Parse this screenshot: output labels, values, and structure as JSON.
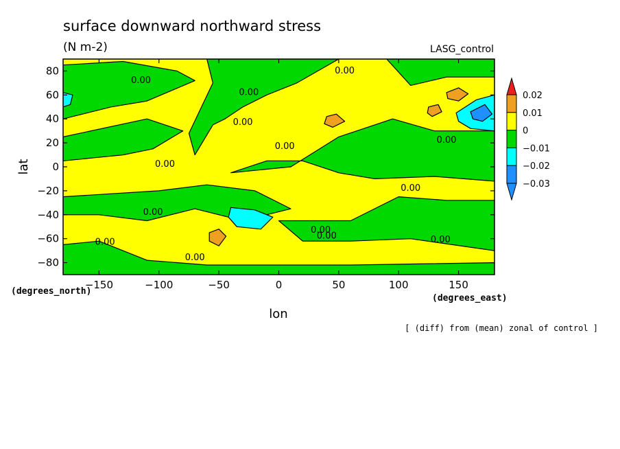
{
  "chart_data": {
    "type": "heatmap",
    "title": "surface downward northward stress",
    "units": "(N m-2)",
    "model_label": "LASG_control",
    "xlabel": "lon",
    "ylabel": "lat",
    "x_units_label": "(degrees_east)",
    "y_units_label": "(degrees_north)",
    "footnote": "[ (diff) from (mean) zonal of control ]",
    "xlim": [
      -180,
      180
    ],
    "ylim": [
      -90,
      90
    ],
    "x_ticks": [
      -150,
      -100,
      -50,
      0,
      50,
      100,
      150
    ],
    "y_ticks": [
      -80,
      -60,
      -40,
      -20,
      0,
      20,
      40,
      60,
      80
    ],
    "contour_label": "0.00",
    "colorbar": {
      "levels": [
        0.02,
        0.01,
        0,
        -0.01,
        -0.02,
        -0.03
      ],
      "level_labels": [
        "0.02",
        "0.01",
        "0",
        "-0.01",
        "-0.02",
        "-0.03"
      ],
      "colors": [
        "#e8201e",
        "#f0a020",
        "#ffff00",
        "#00d800",
        "#00ffff",
        "#1e90ff"
      ]
    },
    "base_color": "#ffff00",
    "regions": [
      {
        "level": -0.01,
        "color": "#00d800",
        "poly": [
          [
            -180,
            85
          ],
          [
            -130,
            88
          ],
          [
            -85,
            80
          ],
          [
            -70,
            72
          ],
          [
            -110,
            55
          ],
          [
            -140,
            50
          ],
          [
            -180,
            40
          ]
        ]
      },
      {
        "level": -0.01,
        "color": "#00d800",
        "poly": [
          [
            -60,
            90
          ],
          [
            50,
            90
          ],
          [
            15,
            70
          ],
          [
            -10,
            60
          ],
          [
            -30,
            50
          ],
          [
            -45,
            40
          ],
          [
            -55,
            35
          ],
          [
            -70,
            10
          ],
          [
            -75,
            28
          ],
          [
            -55,
            70
          ]
        ]
      },
      {
        "level": -0.01,
        "color": "#00d800",
        "poly": [
          [
            90,
            90
          ],
          [
            180,
            90
          ],
          [
            180,
            75
          ],
          [
            140,
            75
          ],
          [
            110,
            68
          ]
        ]
      },
      {
        "level": -0.01,
        "color": "#00d800",
        "poly": [
          [
            -180,
            25
          ],
          [
            -110,
            40
          ],
          [
            -80,
            30
          ],
          [
            -105,
            15
          ],
          [
            -130,
            10
          ],
          [
            -180,
            5
          ]
        ]
      },
      {
        "level": -0.01,
        "color": "#00d800",
        "poly": [
          [
            -40,
            -5
          ],
          [
            10,
            0
          ],
          [
            50,
            25
          ],
          [
            95,
            40
          ],
          [
            130,
            30
          ],
          [
            180,
            30
          ],
          [
            180,
            -12
          ],
          [
            130,
            -8
          ],
          [
            80,
            -10
          ],
          [
            50,
            -5
          ],
          [
            20,
            5
          ],
          [
            -10,
            5
          ]
        ]
      },
      {
        "level": -0.01,
        "color": "#00d800",
        "poly": [
          [
            -180,
            -25
          ],
          [
            -100,
            -20
          ],
          [
            -60,
            -15
          ],
          [
            -20,
            -20
          ],
          [
            10,
            -35
          ],
          [
            -30,
            -45
          ],
          [
            -70,
            -35
          ],
          [
            -110,
            -45
          ],
          [
            -150,
            -40
          ],
          [
            -180,
            -40
          ]
        ]
      },
      {
        "level": -0.01,
        "color": "#00d800",
        "poly": [
          [
            0,
            -45
          ],
          [
            60,
            -45
          ],
          [
            100,
            -25
          ],
          [
            140,
            -28
          ],
          [
            180,
            -28
          ],
          [
            180,
            -70
          ],
          [
            110,
            -60
          ],
          [
            60,
            -62
          ],
          [
            20,
            -62
          ]
        ]
      },
      {
        "level": -0.01,
        "color": "#00d800",
        "poly": [
          [
            -180,
            -65
          ],
          [
            -150,
            -62
          ],
          [
            -110,
            -78
          ],
          [
            -60,
            -82
          ],
          [
            0,
            -82
          ],
          [
            60,
            -82
          ],
          [
            180,
            -80
          ],
          [
            180,
            -90
          ],
          [
            -180,
            -90
          ]
        ]
      },
      {
        "level": -0.02,
        "color": "#00ffff",
        "poly": [
          [
            -40,
            -34
          ],
          [
            -20,
            -36
          ],
          [
            -5,
            -42
          ],
          [
            -15,
            -52
          ],
          [
            -35,
            -50
          ],
          [
            -42,
            -42
          ]
        ]
      },
      {
        "level": -0.02,
        "color": "#00ffff",
        "poly": [
          [
            -180,
            62
          ],
          [
            -172,
            60
          ],
          [
            -174,
            52
          ],
          [
            -180,
            50
          ]
        ]
      },
      {
        "level": -0.02,
        "color": "#00ffff",
        "poly": [
          [
            148,
            45
          ],
          [
            165,
            56
          ],
          [
            180,
            60
          ],
          [
            180,
            30
          ],
          [
            160,
            32
          ],
          [
            150,
            38
          ]
        ]
      },
      {
        "level": -0.03,
        "color": "#1e90ff",
        "poly": [
          [
            160,
            46
          ],
          [
            172,
            52
          ],
          [
            178,
            44
          ],
          [
            170,
            38
          ],
          [
            162,
            40
          ]
        ]
      },
      {
        "level": 0.01,
        "color": "#f0a020",
        "poly": [
          [
            -58,
            -55
          ],
          [
            -50,
            -52
          ],
          [
            -44,
            -58
          ],
          [
            -50,
            -66
          ],
          [
            -58,
            -62
          ]
        ]
      },
      {
        "level": 0.01,
        "color": "#f0a020",
        "poly": [
          [
            140,
            62
          ],
          [
            150,
            66
          ],
          [
            158,
            61
          ],
          [
            150,
            55
          ],
          [
            141,
            57
          ]
        ]
      },
      {
        "level": 0.01,
        "color": "#f0a020",
        "poly": [
          [
            125,
            50
          ],
          [
            133,
            52
          ],
          [
            136,
            46
          ],
          [
            128,
            42
          ],
          [
            124,
            45
          ]
        ]
      },
      {
        "level": 0.01,
        "color": "#f0a020",
        "poly": [
          [
            40,
            42
          ],
          [
            48,
            44
          ],
          [
            55,
            38
          ],
          [
            45,
            33
          ],
          [
            38,
            36
          ]
        ]
      }
    ],
    "zero_label_positions": [
      [
        -115,
        70
      ],
      [
        -95,
        0
      ],
      [
        -105,
        -40
      ],
      [
        -145,
        -65
      ],
      [
        -70,
        -78
      ],
      [
        -25,
        60
      ],
      [
        -30,
        35
      ],
      [
        5,
        15
      ],
      [
        55,
        78
      ],
      [
        110,
        -20
      ],
      [
        135,
        -63
      ],
      [
        140,
        20
      ],
      [
        35,
        -55
      ],
      [
        40,
        -60
      ]
    ]
  }
}
